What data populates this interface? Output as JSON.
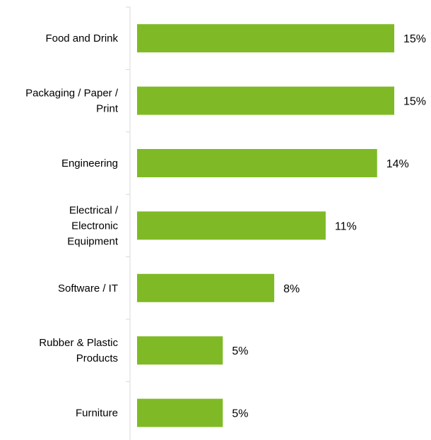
{
  "chart_data": {
    "type": "bar",
    "orientation": "horizontal",
    "categories": [
      "Food and Drink",
      "Packaging / Paper / Print",
      "Engineering",
      "Electrical / Electronic Equipment",
      "Software / IT",
      "Rubber & Plastic Products",
      "Furniture"
    ],
    "category_label_lines": [
      [
        "Food and Drink"
      ],
      [
        "Packaging / Paper /",
        "Print"
      ],
      [
        "Engineering"
      ],
      [
        "Electrical /",
        "Electronic",
        "Equipment"
      ],
      [
        "Software / IT"
      ],
      [
        "Rubber & Plastic",
        "Products"
      ],
      [
        "Furniture"
      ]
    ],
    "values": [
      15,
      15,
      14,
      11,
      8,
      5,
      5
    ],
    "value_labels": [
      "15%",
      "15%",
      "14%",
      "11%",
      "8%",
      "5%",
      "5%"
    ],
    "title": "",
    "xlabel": "",
    "ylabel": "",
    "xlim": [
      0,
      17.5
    ],
    "grid": false,
    "legend": "none",
    "bar_color": "#7FBA26",
    "axis_color": "#D9D9D9"
  }
}
